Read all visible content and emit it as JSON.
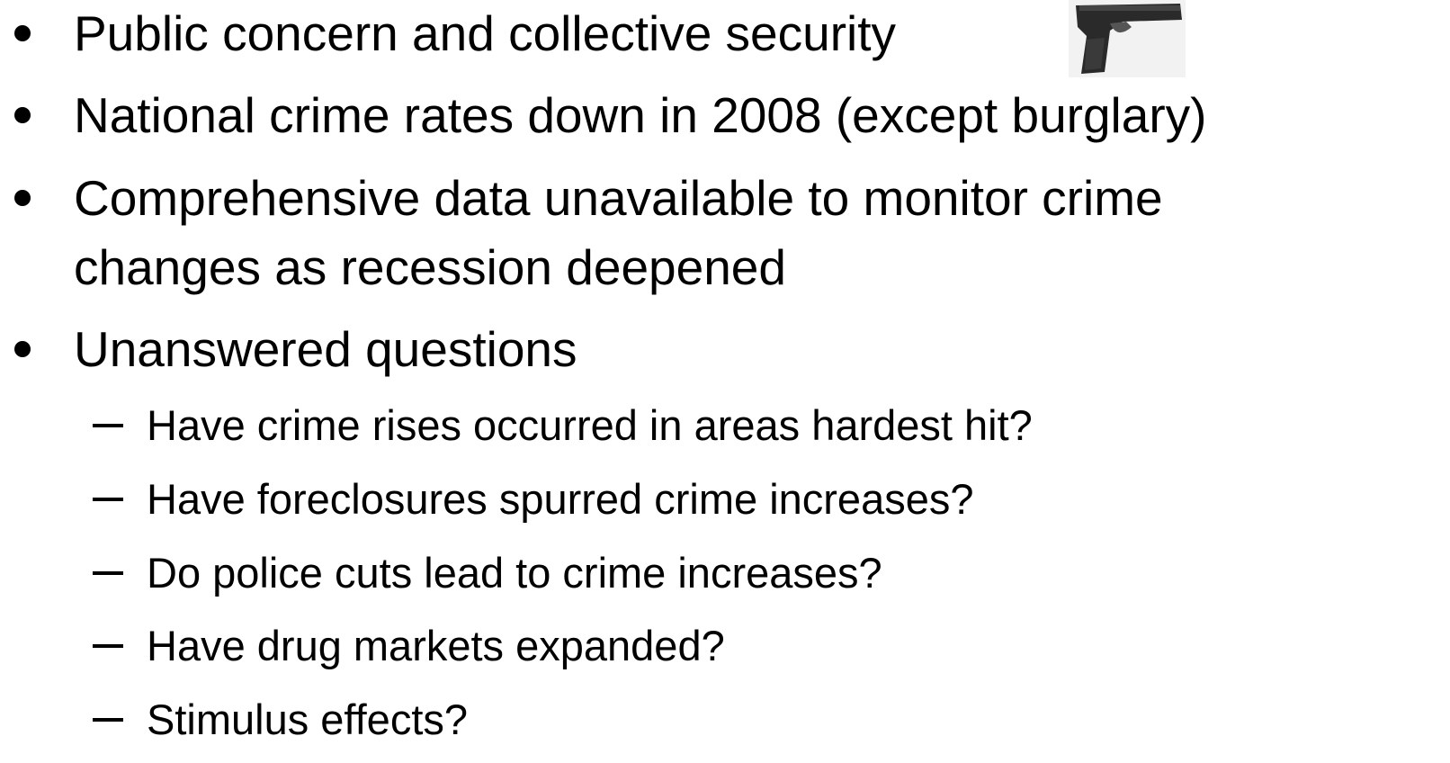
{
  "slide": {
    "bullets": [
      {
        "lines": [
          "Public concern and collective security"
        ]
      },
      {
        "lines": [
          "National crime rates down in 2008 (except burglary)"
        ]
      },
      {
        "lines": [
          "Comprehensive data unavailable to monitor crime",
          "changes as recession deepened"
        ]
      },
      {
        "lines": [
          "Unanswered questions"
        ],
        "subitems": [
          "Have crime rises occurred in areas hardest hit?",
          "Have foreclosures spurred crime increases?",
          "Do police cuts lead to crime increases?",
          "Have drug markets expanded?",
          "Stimulus effects?"
        ]
      }
    ]
  }
}
